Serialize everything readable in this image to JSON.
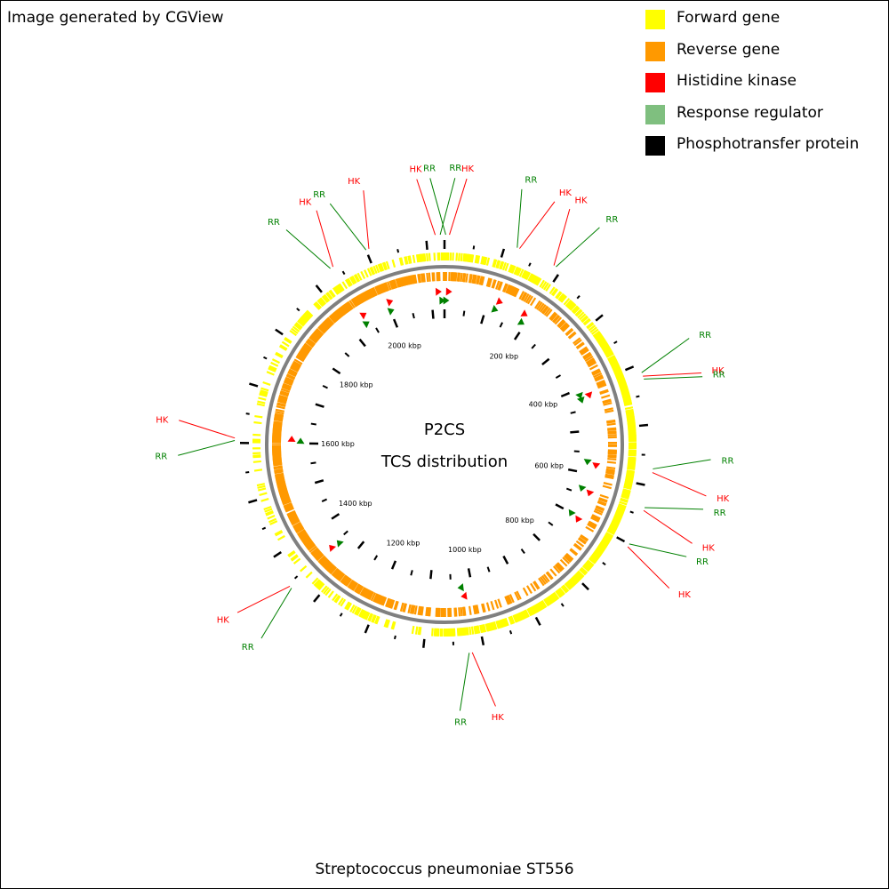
{
  "credit": "Image generated by CGView",
  "organism": "Streptococcus pneumoniae ST556",
  "center_title": [
    "P2CS",
    "TCS distribution"
  ],
  "colors": {
    "forward": "#ffff00",
    "reverse": "#ff9900",
    "hk": "#ff0000",
    "rr": "#008000",
    "rr_legend": "#7fbf7f",
    "phospho": "#000000",
    "backbone": "#808080"
  },
  "legend": [
    {
      "label": "Forward gene",
      "color": "#ffff00"
    },
    {
      "label": "Reverse gene",
      "color": "#ff9900"
    },
    {
      "label": "Histidine kinase",
      "color": "#ff0000"
    },
    {
      "label": "Response regulator",
      "color": "#7fbf7f"
    },
    {
      "label": "Phosphotransfer protein",
      "color": "#000000"
    }
  ],
  "genome": {
    "length_kbp": 2130,
    "tick_labels": [
      "200 kbp",
      "400 kbp",
      "600 kbp",
      "800 kbp",
      "1000 kbp",
      "1200 kbp",
      "1400 kbp",
      "1600 kbp",
      "1800 kbp",
      "2000 kbp"
    ],
    "tick_positions_kbp": [
      200,
      400,
      600,
      800,
      1000,
      1200,
      1400,
      1600,
      1800,
      2000
    ]
  },
  "tcs_features": [
    {
      "name": "HK",
      "type": "hk",
      "kbp": 2115
    },
    {
      "name": "RR",
      "type": "rr",
      "kbp": 2123
    },
    {
      "name": "RR",
      "type": "rr",
      "kbp": 2
    },
    {
      "name": "HK",
      "type": "hk",
      "kbp": 8
    },
    {
      "name": "RR",
      "type": "rr",
      "kbp": 120
    },
    {
      "name": "HK",
      "type": "hk",
      "kbp": 124
    },
    {
      "name": "HK",
      "type": "hk",
      "kbp": 186
    },
    {
      "name": "RR",
      "type": "rr",
      "kbp": 190
    },
    {
      "name": "RR",
      "type": "rr",
      "kbp": 414
    },
    {
      "name": "HK",
      "type": "hk",
      "kbp": 420
    },
    {
      "name": "RR",
      "type": "rr",
      "kbp": 425
    },
    {
      "name": "RR",
      "type": "rr",
      "kbp": 572
    },
    {
      "name": "HK",
      "type": "hk",
      "kbp": 578
    },
    {
      "name": "RR",
      "type": "rr",
      "kbp": 636
    },
    {
      "name": "HK",
      "type": "hk",
      "kbp": 641
    },
    {
      "name": "RR",
      "type": "rr",
      "kbp": 700
    },
    {
      "name": "HK",
      "type": "hk",
      "kbp": 705
    },
    {
      "name": "HK",
      "type": "hk",
      "kbp": 1020
    },
    {
      "name": "RR",
      "type": "rr",
      "kbp": 1025
    },
    {
      "name": "RR",
      "type": "rr",
      "kbp": 1342
    },
    {
      "name": "HK",
      "type": "hk",
      "kbp": 1346
    },
    {
      "name": "RR",
      "type": "rr",
      "kbp": 1604
    },
    {
      "name": "HK",
      "type": "hk",
      "kbp": 1608
    },
    {
      "name": "RR",
      "type": "rr",
      "kbp": 1935
    },
    {
      "name": "HK",
      "type": "hk",
      "kbp": 1940
    },
    {
      "name": "RR",
      "type": "rr",
      "kbp": 2000
    },
    {
      "name": "HK",
      "type": "hk",
      "kbp": 2005
    }
  ]
}
